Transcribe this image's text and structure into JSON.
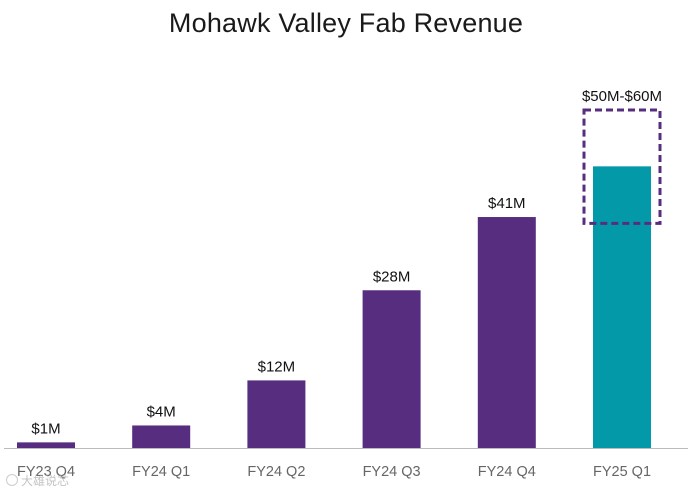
{
  "chart_data": {
    "type": "bar",
    "title": "Mohawk Valley Fab Revenue",
    "xlabel": "",
    "ylabel": "",
    "ylim": [
      0,
      60
    ],
    "grid": false,
    "categories": [
      "FY23 Q4",
      "FY24 Q1",
      "FY24 Q2",
      "FY24 Q3",
      "FY24 Q4",
      "FY25 Q1"
    ],
    "values": [
      1,
      4,
      12,
      28,
      41,
      50
    ],
    "data_labels": [
      "$1M",
      "$4M",
      "$12M",
      "$28M",
      "$41M",
      "$50M-$60M"
    ],
    "guidance_range": {
      "category": "FY25 Q1",
      "low": 50,
      "high": 60,
      "style": "dashed"
    },
    "colors": {
      "actual": "#562d7f",
      "guidance": "#0499a8",
      "range_outline": "#562d7f",
      "axis": "#bbbbbb"
    }
  },
  "watermark": {
    "text": "大雄说芯"
  }
}
